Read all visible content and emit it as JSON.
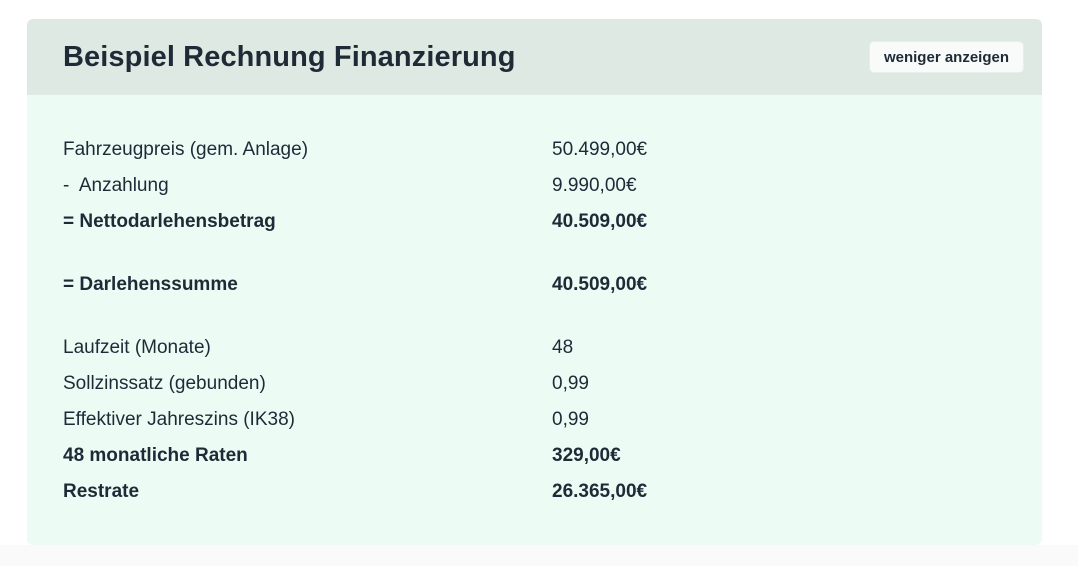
{
  "card": {
    "title": "Beispiel Rechnung Finanzierung",
    "toggle_label": "weniger anzeigen"
  },
  "rows": [
    {
      "label": "Fahrzeugpreis (gem. Anlage)",
      "value": "50.499,00€",
      "bold": false
    },
    {
      "label": "-  Anzahlung",
      "value": "9.990,00€",
      "bold": false
    },
    {
      "label": "= Nettodarlehensbetrag",
      "value": "40.509,00€",
      "bold": true
    },
    {
      "label": "= Darlehenssumme",
      "value": "40.509,00€",
      "bold": true
    },
    {
      "label": "Laufzeit (Monate)",
      "value": "48",
      "bold": false
    },
    {
      "label": "Sollzinssatz (gebunden)",
      "value": "0,99",
      "bold": false
    },
    {
      "label": "Effektiver Jahreszins (IK38)",
      "value": "0,99",
      "bold": false
    },
    {
      "label": "48 monatliche Raten",
      "value": "329,00€",
      "bold": true
    },
    {
      "label": "Restrate",
      "value": "26.365,00€",
      "bold": true
    }
  ]
}
